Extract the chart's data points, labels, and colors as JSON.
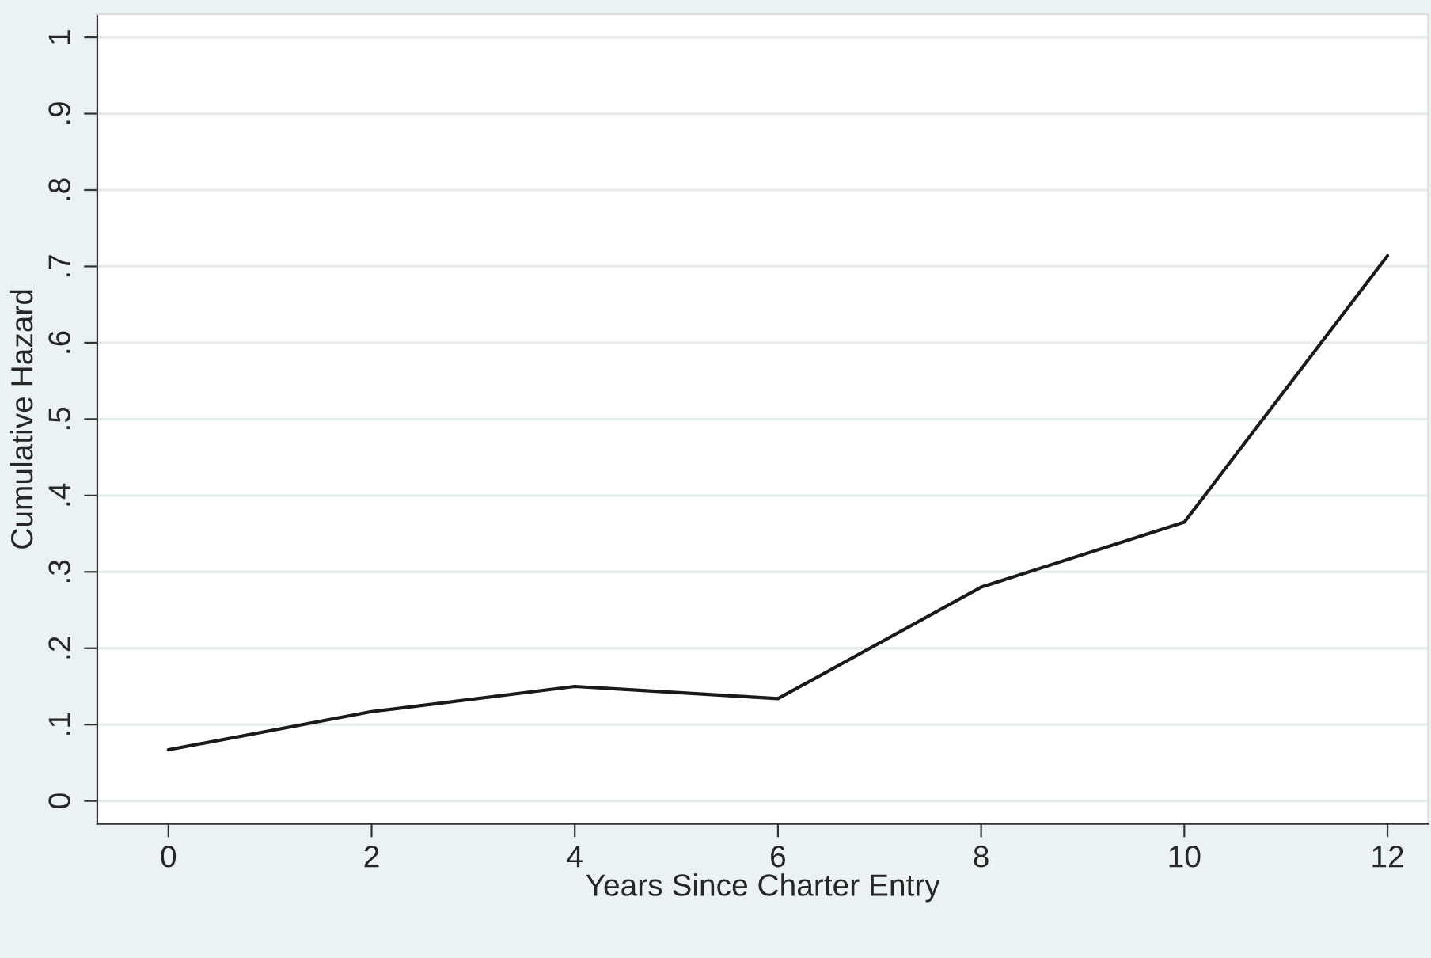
{
  "chart_data": {
    "type": "line",
    "xlabel": "Years Since Charter Entry",
    "ylabel": "Cumulative Hazard",
    "x": [
      0,
      2,
      4,
      6,
      8,
      10,
      12
    ],
    "series": [
      {
        "color": "#1a1a1a",
        "values": [
          0.067,
          0.117,
          0.15,
          0.134,
          0.28,
          0.365,
          0.714
        ]
      }
    ],
    "xlim": [
      -0.7,
      12.4
    ],
    "ylim": [
      -0.03,
      1.03
    ],
    "xticks": [
      0,
      2,
      4,
      6,
      8,
      10,
      12
    ],
    "yticks": [
      0,
      {
        "value": 0.1,
        "label": ".1"
      },
      {
        "value": 0.2,
        "label": ".2"
      },
      {
        "value": 0.3,
        "label": ".3"
      },
      {
        "value": 0.4,
        "label": ".4"
      },
      {
        "value": 0.5,
        "label": ".5"
      },
      {
        "value": 0.6,
        "label": ".6"
      },
      {
        "value": 0.7,
        "label": ".7"
      },
      {
        "value": 0.8,
        "label": ".8"
      },
      {
        "value": 0.9,
        "label": ".9"
      },
      1
    ],
    "grid": "y",
    "line_style": "solid",
    "marker": "none"
  }
}
